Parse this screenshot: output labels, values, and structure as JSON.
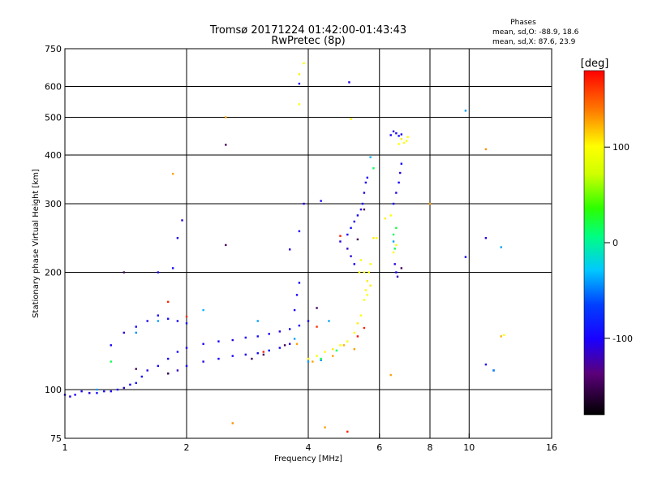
{
  "chart_data": {
    "type": "scatter",
    "title": "Tromsø 20171224 01:42:00-01:43:43",
    "subtitle": "RwPretec (8p)",
    "stats": {
      "heading": "Phases",
      "line_o": "mean, sd,O: -88.9, 18.6",
      "line_x": "mean, sd,X:  87.6, 23.9"
    },
    "xlabel": "Frequency [MHz]",
    "ylabel": "Stationary phase Virtual Height [km]",
    "x_scale": "log",
    "y_scale": "log",
    "xlim": [
      1,
      16
    ],
    "ylim": [
      75,
      750
    ],
    "x_ticks": [
      1,
      2,
      4,
      6,
      8,
      10,
      16
    ],
    "x_grid": [
      2,
      4,
      6,
      8,
      10
    ],
    "y_ticks": [
      75,
      100,
      200,
      300,
      400,
      500,
      600,
      750
    ],
    "y_grid": [
      100,
      200,
      300,
      400,
      500,
      600
    ],
    "grid": true,
    "colorbar": {
      "label": "[deg]",
      "ticks": [
        100,
        0,
        -100
      ],
      "range": [
        -180,
        180
      ]
    },
    "series": [
      {
        "color_group": "blue (O-mode, ~-100 deg)",
        "points": [
          [
            1.0,
            97,
            -100
          ],
          [
            1.03,
            96,
            -105
          ],
          [
            1.06,
            97,
            -98
          ],
          [
            1.1,
            99,
            -102
          ],
          [
            1.15,
            98,
            -110
          ],
          [
            1.2,
            98,
            -95
          ],
          [
            1.25,
            99,
            -100
          ],
          [
            1.3,
            99,
            -104
          ],
          [
            1.35,
            100,
            -96
          ],
          [
            1.4,
            101,
            -108
          ],
          [
            1.45,
            103,
            -100
          ],
          [
            1.5,
            104,
            -92
          ],
          [
            1.55,
            108,
            -100
          ],
          [
            1.6,
            112,
            -110
          ],
          [
            1.7,
            115,
            -98
          ],
          [
            1.8,
            120,
            -100
          ],
          [
            1.9,
            125,
            -95
          ],
          [
            2.0,
            128,
            -105
          ],
          [
            2.2,
            131,
            -100
          ],
          [
            2.4,
            133,
            -98
          ],
          [
            2.6,
            134,
            -110
          ],
          [
            2.8,
            136,
            -100
          ],
          [
            3.0,
            137,
            -95
          ],
          [
            3.2,
            139,
            -100
          ],
          [
            3.4,
            141,
            -105
          ],
          [
            3.6,
            143,
            -98
          ],
          [
            3.8,
            146,
            -100
          ],
          [
            4.0,
            150,
            -102
          ],
          [
            1.3,
            130,
            -100
          ],
          [
            1.4,
            140,
            -110
          ],
          [
            1.5,
            145,
            -98
          ],
          [
            1.6,
            150,
            -105
          ],
          [
            1.7,
            155,
            -100
          ],
          [
            1.8,
            152,
            -95
          ],
          [
            1.9,
            150,
            -100
          ],
          [
            2.0,
            148,
            -90
          ],
          [
            1.8,
            110,
            -100
          ],
          [
            1.9,
            112,
            -120
          ],
          [
            2.0,
            115,
            -100
          ],
          [
            2.2,
            118,
            -110
          ],
          [
            2.4,
            120,
            -100
          ],
          [
            2.6,
            122,
            -100
          ],
          [
            2.8,
            123,
            -105
          ],
          [
            3.0,
            124,
            -100
          ],
          [
            3.2,
            126,
            -98
          ],
          [
            3.4,
            128,
            -100
          ],
          [
            3.6,
            131,
            -110
          ],
          [
            1.7,
            200,
            -100
          ],
          [
            1.85,
            205,
            -95
          ],
          [
            1.95,
            272,
            -110
          ],
          [
            1.9,
            245,
            -105
          ],
          [
            3.7,
            160,
            -100
          ],
          [
            3.75,
            175,
            -100
          ],
          [
            3.8,
            188,
            -98
          ],
          [
            3.6,
            229,
            -110
          ],
          [
            3.8,
            255,
            -100
          ],
          [
            3.9,
            300,
            -105
          ],
          [
            4.3,
            305,
            -100
          ],
          [
            4.8,
            240,
            -110
          ],
          [
            5.0,
            250,
            -100
          ],
          [
            5.1,
            260,
            -95
          ],
          [
            5.2,
            270,
            -100
          ],
          [
            5.3,
            280,
            -102
          ],
          [
            5.4,
            290,
            -110
          ],
          [
            5.45,
            300,
            -100
          ],
          [
            5.5,
            320,
            -105
          ],
          [
            5.55,
            340,
            -100
          ],
          [
            5.6,
            350,
            -100
          ],
          [
            5.0,
            230,
            -120
          ],
          [
            5.1,
            220,
            -110
          ],
          [
            5.2,
            210,
            -100
          ],
          [
            6.5,
            300,
            -100
          ],
          [
            6.6,
            320,
            -105
          ],
          [
            6.7,
            340,
            -100
          ],
          [
            6.75,
            360,
            -110
          ],
          [
            6.8,
            380,
            -100
          ],
          [
            6.4,
            450,
            -100
          ],
          [
            6.5,
            460,
            -105
          ],
          [
            6.6,
            455,
            -100
          ],
          [
            6.7,
            448,
            -95
          ],
          [
            6.8,
            452,
            -100
          ],
          [
            6.55,
            210,
            -110
          ],
          [
            6.6,
            200,
            -100
          ],
          [
            6.65,
            195,
            -120
          ],
          [
            3.8,
            610,
            -100
          ],
          [
            5.05,
            615,
            -105
          ],
          [
            11.0,
            116,
            -100
          ],
          [
            11.5,
            112,
            -110
          ],
          [
            9.8,
            219,
            -100
          ],
          [
            11.0,
            245,
            -105
          ]
        ]
      },
      {
        "color_group": "cyan (~-40 deg)",
        "points": [
          [
            1.2,
            100,
            -40
          ],
          [
            1.5,
            140,
            -45
          ],
          [
            1.7,
            150,
            -40
          ],
          [
            2.2,
            160,
            -35
          ],
          [
            3.0,
            150,
            -40
          ],
          [
            4.0,
            118,
            -40
          ],
          [
            4.3,
            119,
            -45
          ],
          [
            4.5,
            150,
            -40
          ],
          [
            5.7,
            395,
            -35
          ],
          [
            6.5,
            240,
            -40
          ],
          [
            9.8,
            520,
            -40
          ],
          [
            11.5,
            112,
            -45
          ],
          [
            12.0,
            232,
            -40
          ],
          [
            3.7,
            135,
            -40
          ]
        ]
      },
      {
        "color_group": "green (~10 deg)",
        "points": [
          [
            1.3,
            118,
            10
          ],
          [
            4.3,
            120,
            10
          ],
          [
            4.7,
            126,
            5
          ],
          [
            6.5,
            250,
            10
          ],
          [
            6.6,
            260,
            15
          ],
          [
            6.55,
            230,
            10
          ],
          [
            5.8,
            370,
            10
          ]
        ]
      },
      {
        "color_group": "yellow (O/X ~100 deg)",
        "points": [
          [
            4.0,
            120,
            100
          ],
          [
            4.2,
            122,
            95
          ],
          [
            4.4,
            125,
            100
          ],
          [
            4.6,
            127,
            105
          ],
          [
            4.8,
            130,
            100
          ],
          [
            5.0,
            133,
            98
          ],
          [
            5.2,
            140,
            100
          ],
          [
            5.3,
            148,
            105
          ],
          [
            5.4,
            155,
            100
          ],
          [
            5.5,
            170,
            95
          ],
          [
            5.55,
            180,
            100
          ],
          [
            5.6,
            190,
            105
          ],
          [
            5.65,
            200,
            100
          ],
          [
            5.7,
            210,
            98
          ],
          [
            5.5,
            200,
            100
          ],
          [
            5.6,
            175,
            100
          ],
          [
            5.7,
            185,
            105
          ],
          [
            5.35,
            200,
            100
          ],
          [
            5.4,
            215,
            95
          ],
          [
            5.9,
            245,
            100
          ],
          [
            6.2,
            275,
            105
          ],
          [
            6.5,
            225,
            100
          ],
          [
            6.6,
            235,
            95
          ],
          [
            6.7,
            427,
            100
          ],
          [
            6.8,
            440,
            105
          ],
          [
            6.9,
            430,
            100
          ],
          [
            7.0,
            435,
            98
          ],
          [
            7.05,
            445,
            100
          ],
          [
            3.8,
            540,
            100
          ],
          [
            5.1,
            495,
            100
          ],
          [
            3.8,
            645,
            105
          ],
          [
            3.9,
            688,
            100
          ],
          [
            12.2,
            138,
            100
          ],
          [
            6.4,
            280,
            100
          ],
          [
            5.8,
            245,
            105
          ]
        ]
      },
      {
        "color_group": "orange (~130 deg)",
        "points": [
          [
            1.85,
            358,
            130
          ],
          [
            2.5,
            500,
            130
          ],
          [
            2.6,
            82,
            135
          ],
          [
            4.4,
            80,
            130
          ],
          [
            4.6,
            122,
            130
          ],
          [
            4.9,
            130,
            125
          ],
          [
            5.2,
            127,
            130
          ],
          [
            8.0,
            300,
            130
          ],
          [
            11.0,
            414,
            135
          ],
          [
            6.4,
            109,
            130
          ],
          [
            3.75,
            131,
            130
          ],
          [
            4.1,
            118,
            130
          ],
          [
            12.0,
            137,
            125
          ]
        ]
      },
      {
        "color_group": "red (~170 deg)",
        "points": [
          [
            1.8,
            168,
            170
          ],
          [
            2.0,
            154,
            165
          ],
          [
            5.0,
            78,
            170
          ],
          [
            4.8,
            248,
            170
          ],
          [
            5.3,
            137,
            175
          ],
          [
            5.5,
            144,
            170
          ],
          [
            3.1,
            125,
            170
          ],
          [
            4.2,
            145,
            165
          ]
        ]
      },
      {
        "color_group": "purple (~-150 deg)",
        "points": [
          [
            1.4,
            200,
            -150
          ],
          [
            1.5,
            113,
            -150
          ],
          [
            1.8,
            110,
            -155
          ],
          [
            2.9,
            120,
            -150
          ],
          [
            3.1,
            123,
            -150
          ],
          [
            3.5,
            130,
            -150
          ],
          [
            4.2,
            162,
            -150
          ],
          [
            5.3,
            243,
            -150
          ],
          [
            5.5,
            290,
            -150
          ],
          [
            6.8,
            205,
            -150
          ],
          [
            2.5,
            235,
            -150
          ],
          [
            2.5,
            425,
            -150
          ]
        ]
      }
    ]
  }
}
